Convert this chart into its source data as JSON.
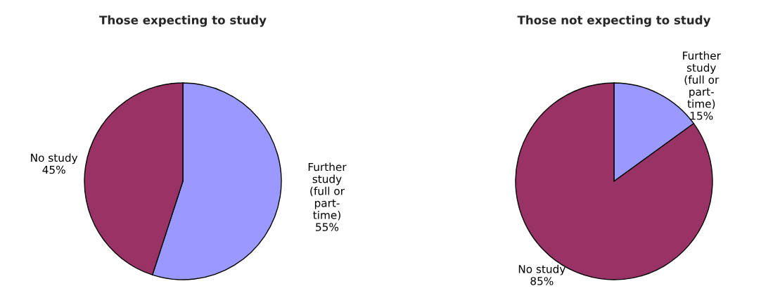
{
  "chart_data": [
    {
      "type": "pie",
      "title": "Those expecting to study",
      "categories": [
        "Further\nstudy\n(full or\npart-\ntime)",
        "No study"
      ],
      "values": [
        55,
        45
      ],
      "value_labels": [
        "55%",
        "45%"
      ],
      "colors": [
        "#9999ff",
        "#993366"
      ]
    },
    {
      "type": "pie",
      "title": "Those not expecting to study",
      "categories": [
        "Further\nstudy\n(full or\npart-\ntime)",
        "No study"
      ],
      "values": [
        15,
        85
      ],
      "value_labels": [
        "15%",
        "85%"
      ],
      "colors": [
        "#9999ff",
        "#993366"
      ]
    }
  ]
}
